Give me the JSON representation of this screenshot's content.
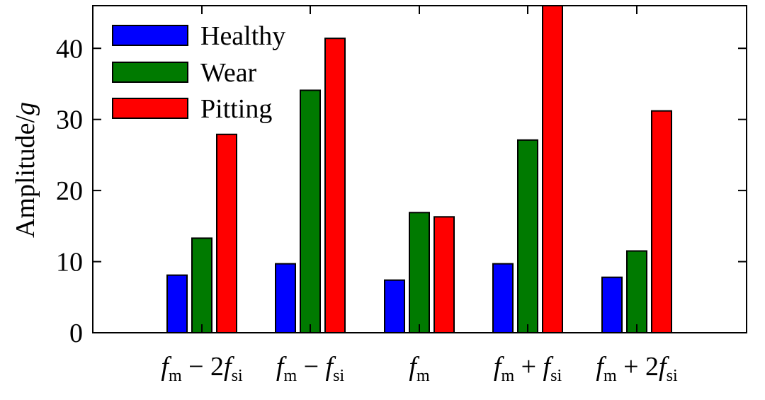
{
  "colors": {
    "healthy": "#0000ff",
    "wear": "#007a00",
    "pitting": "#ff0000",
    "axis": "#000000"
  },
  "chart_data": {
    "type": "bar",
    "title": "",
    "xlabel": "",
    "ylabel": "Amplitude/g",
    "ylabel_parts": {
      "text": "Amplitude/",
      "unit": "g"
    },
    "ylim": [
      0,
      46
    ],
    "yticks": [
      0,
      10,
      20,
      30,
      40
    ],
    "grid": false,
    "legend_position": "top-left",
    "categories": [
      "fm − 2fsi",
      "fm − fsi",
      "fm",
      "fm + fsi",
      "fm + 2fsi"
    ],
    "category_labels": [
      {
        "f1": "f",
        "s1": "m",
        "op": "− 2",
        "f2": "f",
        "s2": "si"
      },
      {
        "f1": "f",
        "s1": "m",
        "op": "− ",
        "f2": "f",
        "s2": "si"
      },
      {
        "f1": "f",
        "s1": "m",
        "op": "",
        "f2": "",
        "s2": ""
      },
      {
        "f1": "f",
        "s1": "m",
        "op": "+ ",
        "f2": "f",
        "s2": "si"
      },
      {
        "f1": "f",
        "s1": "m",
        "op": "+ 2",
        "f2": "f",
        "s2": "si"
      }
    ],
    "series": [
      {
        "name": "Healthy",
        "color": "#0000ff",
        "values": [
          8.1,
          9.7,
          7.4,
          9.7,
          7.8
        ]
      },
      {
        "name": "Wear",
        "color": "#007a00",
        "values": [
          13.3,
          34.1,
          16.9,
          27.1,
          11.5
        ]
      },
      {
        "name": "Pitting",
        "color": "#ff0000",
        "values": [
          27.9,
          41.4,
          16.3,
          46.0,
          31.2
        ]
      }
    ]
  }
}
